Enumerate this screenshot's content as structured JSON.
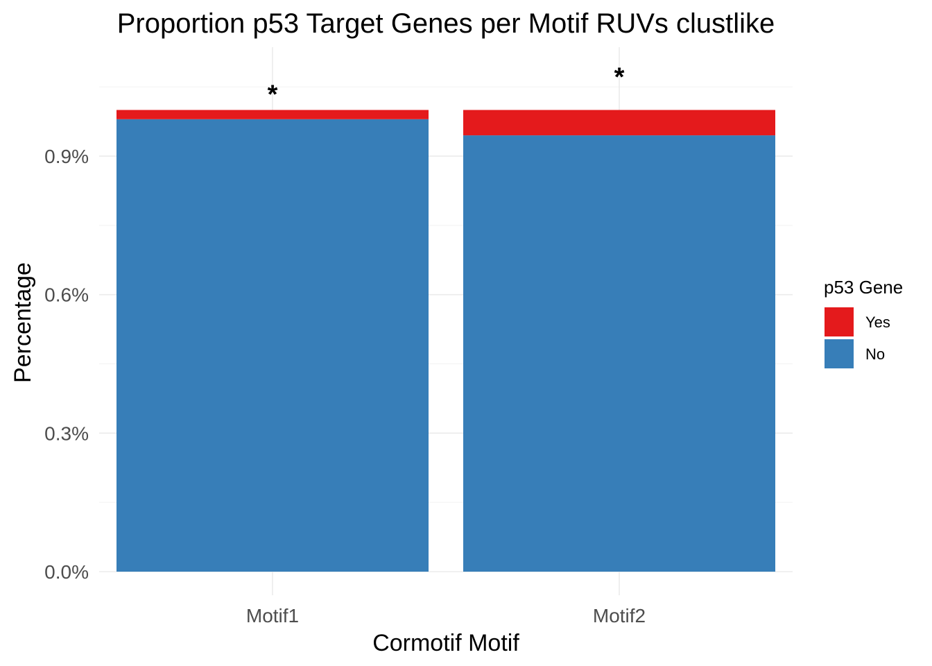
{
  "chart_data": {
    "type": "bar",
    "stacked": true,
    "title": "Proportion p53 Target Genes per Motif RUVs clustlike",
    "xlabel": "Cormotif Motif",
    "ylabel": "Percentage",
    "categories": [
      "Motif1",
      "Motif2"
    ],
    "ylim": [
      0,
      1.05
    ],
    "yticks": [
      0,
      0.3,
      0.6,
      0.9
    ],
    "ytick_labels": [
      "0.0%",
      "0.3%",
      "0.6%",
      "0.9%"
    ],
    "series": [
      {
        "name": "No",
        "values": [
          0.98,
          0.945
        ],
        "color": "#377eb8"
      },
      {
        "name": "Yes",
        "values": [
          0.02,
          0.055
        ],
        "color": "#e41a1c"
      }
    ],
    "annotations": [
      "*",
      "*"
    ],
    "legend": {
      "title": "p53 Gene",
      "position": "right",
      "entries": [
        {
          "label": "Yes",
          "color": "#e41a1c"
        },
        {
          "label": "No",
          "color": "#377eb8"
        }
      ]
    },
    "grid": true
  }
}
